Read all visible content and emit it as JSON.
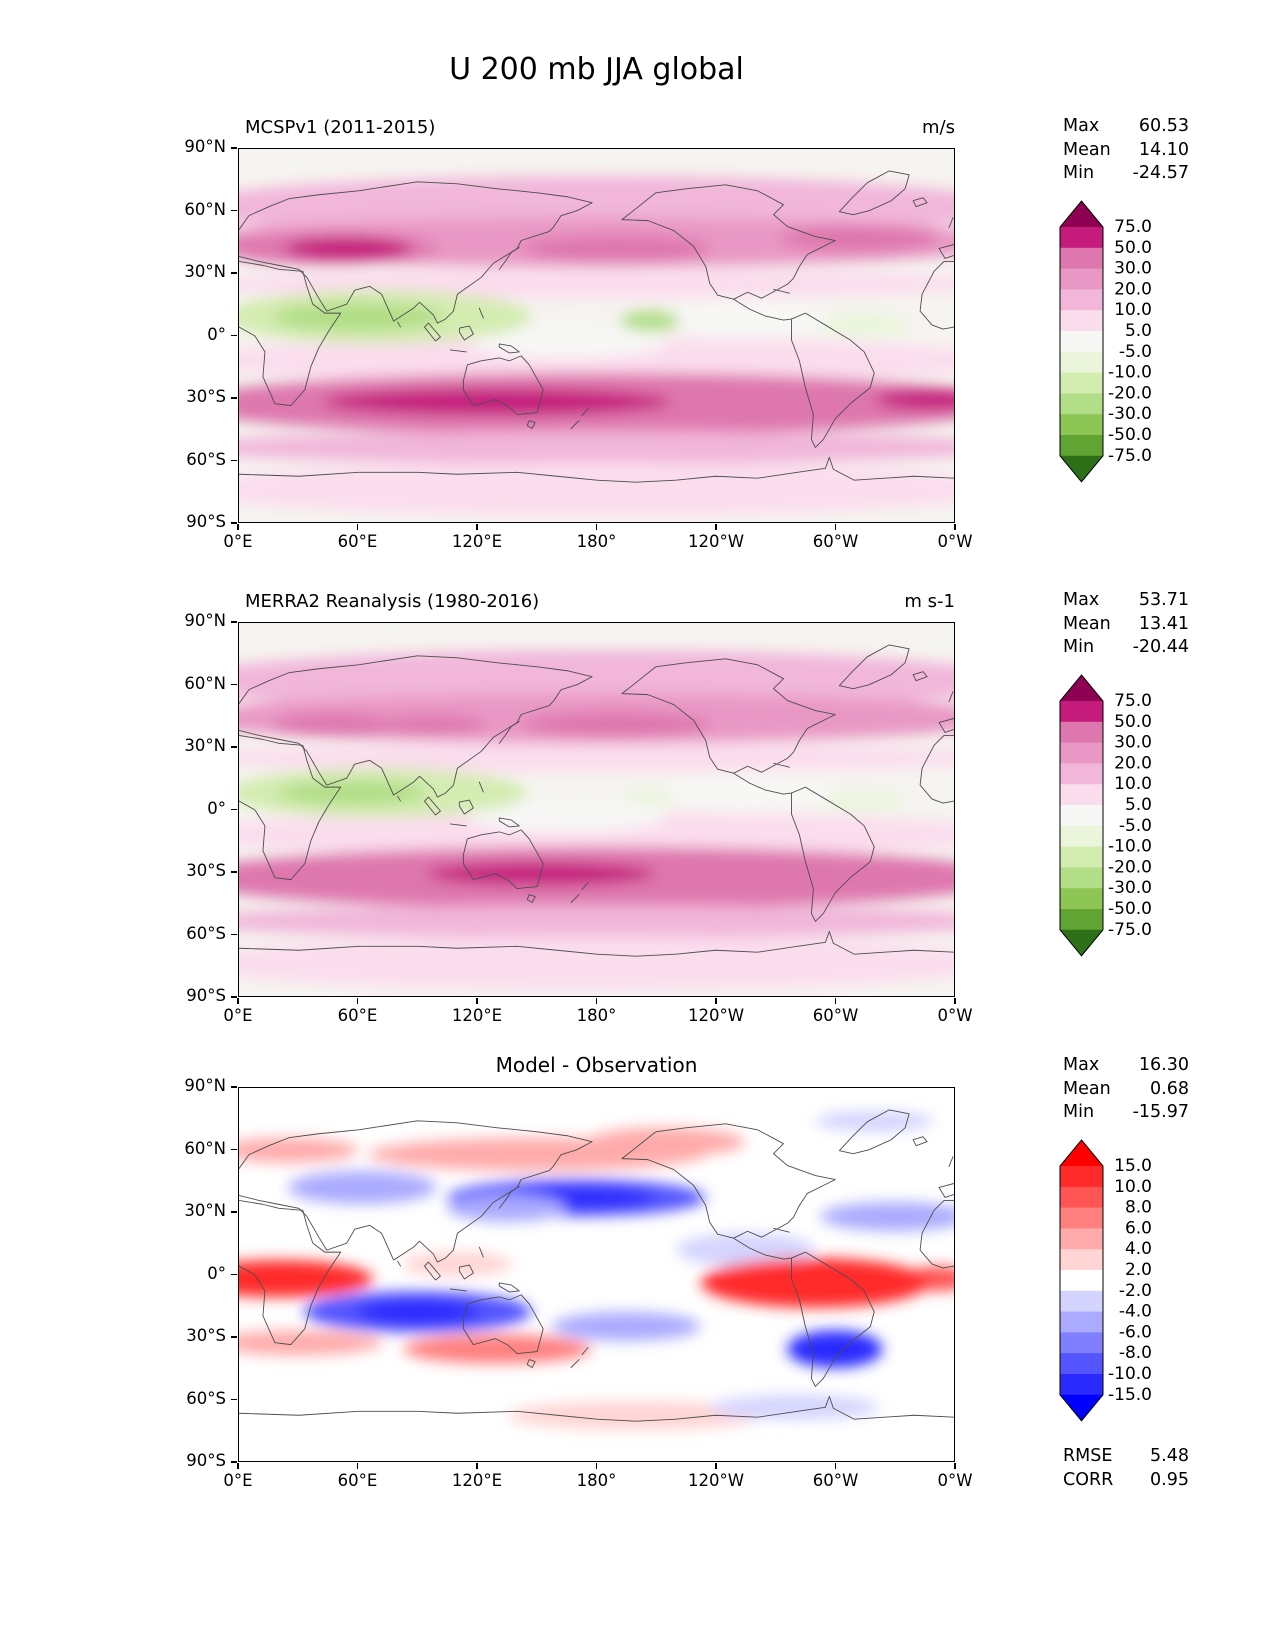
{
  "figure": {
    "title": "U 200 mb JJA global"
  },
  "axes": {
    "x_tick_labels": [
      "0°E",
      "60°E",
      "120°E",
      "180°",
      "120°W",
      "60°W",
      "0°W"
    ],
    "x_tick_lons": [
      0,
      60,
      120,
      180,
      240,
      300,
      360
    ],
    "y_tick_labels": [
      "90°N",
      "60°N",
      "30°N",
      "0°",
      "30°S",
      "60°S",
      "90°S"
    ],
    "y_tick_lats": [
      90,
      60,
      30,
      0,
      -30,
      -60,
      -90
    ],
    "lon_range": [
      0,
      360
    ],
    "lat_range": [
      -90,
      90
    ]
  },
  "chart_data": [
    {
      "type": "filled_contour_map",
      "variable": "U 200 mb",
      "season": "JJA",
      "region": "global",
      "title": "MCSPv1 (2011-2015)",
      "units": "m/s",
      "stats": [
        {
          "label": "Max",
          "value": "60.53"
        },
        {
          "label": "Mean",
          "value": "14.10"
        },
        {
          "label": "Min",
          "value": "-24.57"
        }
      ],
      "contour_levels": [
        -75,
        -50,
        -30,
        -20,
        -10,
        -5,
        5,
        10,
        20,
        30,
        50,
        75
      ],
      "colorbar_tick_labels_top_to_bottom": [
        "75.0",
        "50.0",
        "30.0",
        "20.0",
        "10.0",
        "5.0",
        "-5.0",
        "-10.0",
        "-20.0",
        "-30.0",
        "-50.0",
        "-75.0"
      ],
      "colormap": "PiYG_r",
      "colors_low_to_high": [
        "#2d7018",
        "#61a434",
        "#8ec656",
        "#b2de87",
        "#d3ecb0",
        "#eaf5dc",
        "#f7f7f5",
        "#fbddee",
        "#f1b6da",
        "#e998c5",
        "#de77ae",
        "#c51b7d",
        "#8e0152"
      ],
      "background_color": "#f6f4f0",
      "features": [
        {
          "lon": 180,
          "lat": 62,
          "lon_span": 420,
          "lat_span": 30,
          "value": 15
        },
        {
          "lon": 180,
          "lat": 45,
          "lon_span": 420,
          "lat_span": 24,
          "value": 25
        },
        {
          "lon": 45,
          "lat": 42,
          "lon_span": 110,
          "lat_span": 16,
          "value": 40
        },
        {
          "lon": 55,
          "lat": 42,
          "lon_span": 64,
          "lat_span": 11,
          "value": 60
        },
        {
          "lon": 190,
          "lat": 42,
          "lon_span": 95,
          "lat_span": 13,
          "value": 40
        },
        {
          "lon": 312,
          "lat": 47,
          "lon_span": 80,
          "lat_span": 13,
          "value": 40
        },
        {
          "lon": 180,
          "lat": 25,
          "lon_span": 420,
          "lat_span": 14,
          "value": 7
        },
        {
          "lon": 180,
          "lat": -12,
          "lon_span": 420,
          "lat_span": 22,
          "value": 7
        },
        {
          "lon": 165,
          "lat": -3,
          "lon_span": 100,
          "lat_span": 16,
          "value": 0
        },
        {
          "lon": 255,
          "lat": 8,
          "lon_span": 90,
          "lat_span": 18,
          "value": 0
        },
        {
          "lon": 180,
          "lat": -33,
          "lon_span": 420,
          "lat_span": 30,
          "value": 40
        },
        {
          "lon": 130,
          "lat": -32,
          "lon_span": 175,
          "lat_span": 13,
          "value": 60
        },
        {
          "lon": 350,
          "lat": -31,
          "lon_span": 60,
          "lat_span": 10,
          "value": 60
        },
        {
          "lon": 180,
          "lat": -54,
          "lon_span": 420,
          "lat_span": 16,
          "value": 15
        },
        {
          "lon": 180,
          "lat": -74,
          "lon_span": 420,
          "lat_span": 26,
          "value": 7
        },
        {
          "lon": 70,
          "lat": 9,
          "lon_span": 155,
          "lat_span": 26,
          "value": -15
        },
        {
          "lon": 60,
          "lat": 9,
          "lon_span": 85,
          "lat_span": 14,
          "value": -25
        },
        {
          "lon": 207,
          "lat": 7,
          "lon_span": 30,
          "lat_span": 10,
          "value": -25
        },
        {
          "lon": 315,
          "lat": 5,
          "lon_span": 45,
          "lat_span": 12,
          "value": -7
        }
      ]
    },
    {
      "type": "filled_contour_map",
      "variable": "U 200 mb",
      "season": "JJA",
      "region": "global",
      "title": "MERRA2 Reanalysis (1980-2016)",
      "units": "m s-1",
      "stats": [
        {
          "label": "Max",
          "value": "53.71"
        },
        {
          "label": "Mean",
          "value": "13.41"
        },
        {
          "label": "Min",
          "value": "-20.44"
        }
      ],
      "contour_levels": [
        -75,
        -50,
        -30,
        -20,
        -10,
        -5,
        5,
        10,
        20,
        30,
        50,
        75
      ],
      "colorbar_tick_labels_top_to_bottom": [
        "75.0",
        "50.0",
        "30.0",
        "20.0",
        "10.0",
        "5.0",
        "-5.0",
        "-10.0",
        "-20.0",
        "-30.0",
        "-50.0",
        "-75.0"
      ],
      "colormap": "PiYG_r",
      "colors_low_to_high": [
        "#2d7018",
        "#61a434",
        "#8ec656",
        "#b2de87",
        "#d3ecb0",
        "#eaf5dc",
        "#f7f7f5",
        "#fbddee",
        "#f1b6da",
        "#e998c5",
        "#de77ae",
        "#c51b7d",
        "#8e0152"
      ],
      "background_color": "#f6f4f0",
      "features": [
        {
          "lon": 180,
          "lat": 62,
          "lon_span": 420,
          "lat_span": 30,
          "value": 15
        },
        {
          "lon": 180,
          "lat": 44,
          "lon_span": 420,
          "lat_span": 24,
          "value": 25
        },
        {
          "lon": 48,
          "lat": 41,
          "lon_span": 62,
          "lat_span": 11,
          "value": 40
        },
        {
          "lon": 97,
          "lat": 41,
          "lon_span": 55,
          "lat_span": 9,
          "value": 40
        },
        {
          "lon": 190,
          "lat": 41,
          "lon_span": 95,
          "lat_span": 12,
          "value": 40
        },
        {
          "lon": 312,
          "lat": 46,
          "lon_span": 80,
          "lat_span": 13,
          "value": 25
        },
        {
          "lon": 180,
          "lat": 25,
          "lon_span": 420,
          "lat_span": 14,
          "value": 7
        },
        {
          "lon": 180,
          "lat": -12,
          "lon_span": 420,
          "lat_span": 22,
          "value": 7
        },
        {
          "lon": 165,
          "lat": -3,
          "lon_span": 100,
          "lat_span": 16,
          "value": 0
        },
        {
          "lon": 255,
          "lat": 8,
          "lon_span": 90,
          "lat_span": 18,
          "value": 0
        },
        {
          "lon": 180,
          "lat": -33,
          "lon_span": 420,
          "lat_span": 30,
          "value": 40
        },
        {
          "lon": 152,
          "lat": -31,
          "lon_span": 115,
          "lat_span": 11,
          "value": 60
        },
        {
          "lon": 355,
          "lat": -31,
          "lon_span": 55,
          "lat_span": 10,
          "value": 40
        },
        {
          "lon": 180,
          "lat": -54,
          "lon_span": 420,
          "lat_span": 16,
          "value": 15
        },
        {
          "lon": 180,
          "lat": -74,
          "lon_span": 420,
          "lat_span": 26,
          "value": 7
        },
        {
          "lon": 70,
          "lat": 8,
          "lon_span": 150,
          "lat_span": 24,
          "value": -15
        },
        {
          "lon": 57,
          "lat": 8,
          "lon_span": 75,
          "lat_span": 12,
          "value": -25
        },
        {
          "lon": 207,
          "lat": 6,
          "lon_span": 26,
          "lat_span": 8,
          "value": -7
        },
        {
          "lon": 315,
          "lat": 4,
          "lon_span": 40,
          "lat_span": 10,
          "value": -7
        }
      ]
    },
    {
      "type": "filled_contour_map",
      "variable": "U 200 mb",
      "season": "JJA",
      "region": "global",
      "title": "Model - Observation",
      "units": "",
      "stats": [
        {
          "label": "Max",
          "value": "16.30"
        },
        {
          "label": "Mean",
          "value": "0.68"
        },
        {
          "label": "Min",
          "value": "-15.97"
        }
      ],
      "extra_stats": [
        {
          "label": "RMSE",
          "value": "5.48"
        },
        {
          "label": "CORR",
          "value": "0.95"
        }
      ],
      "contour_levels": [
        -15,
        -10,
        -8,
        -6,
        -4,
        -2,
        2,
        4,
        6,
        8,
        10,
        15
      ],
      "colorbar_tick_labels_top_to_bottom": [
        "15.0",
        "10.0",
        "8.0",
        "6.0",
        "4.0",
        "2.0",
        "-2.0",
        "-4.0",
        "-6.0",
        "-8.0",
        "-10.0",
        "-15.0"
      ],
      "colormap": "bwr",
      "colors_low_to_high": [
        "#0000ff",
        "#2a2aff",
        "#5555ff",
        "#7f7fff",
        "#aaaaff",
        "#d4d4ff",
        "#ffffff",
        "#ffd4d4",
        "#ffaaaa",
        "#ff7f7f",
        "#ff5555",
        "#ff2a2a",
        "#ff0000"
      ],
      "background_color": "#ffffff",
      "features": [
        {
          "lon": 150,
          "lat": 58,
          "lon_span": 170,
          "lat_span": 16,
          "value": 6
        },
        {
          "lon": 215,
          "lat": 64,
          "lon_span": 80,
          "lat_span": 14,
          "value": 5
        },
        {
          "lon": 25,
          "lat": 60,
          "lon_span": 70,
          "lat_span": 12,
          "value": 5
        },
        {
          "lon": 170,
          "lat": 37,
          "lon_span": 130,
          "lat_span": 18,
          "value": -9
        },
        {
          "lon": 172,
          "lat": 37,
          "lon_span": 75,
          "lat_span": 10,
          "value": -12
        },
        {
          "lon": 62,
          "lat": 42,
          "lon_span": 75,
          "lat_span": 16,
          "value": -5
        },
        {
          "lon": 135,
          "lat": 32,
          "lon_span": 60,
          "lat_span": 13,
          "value": -5
        },
        {
          "lon": 330,
          "lat": 28,
          "lon_span": 75,
          "lat_span": 14,
          "value": -5
        },
        {
          "lon": 255,
          "lat": 12,
          "lon_span": 70,
          "lat_span": 16,
          "value": -3
        },
        {
          "lon": 20,
          "lat": -2,
          "lon_span": 95,
          "lat_span": 18,
          "value": 12
        },
        {
          "lon": 352,
          "lat": -2,
          "lon_span": 34,
          "lat_span": 12,
          "value": 9
        },
        {
          "lon": 290,
          "lat": -4,
          "lon_span": 115,
          "lat_span": 24,
          "value": 12
        },
        {
          "lon": 110,
          "lat": 5,
          "lon_span": 55,
          "lat_span": 12,
          "value": 3
        },
        {
          "lon": 90,
          "lat": -18,
          "lon_span": 115,
          "lat_span": 20,
          "value": -9
        },
        {
          "lon": 90,
          "lat": -18,
          "lon_span": 62,
          "lat_span": 12,
          "value": -12
        },
        {
          "lon": 195,
          "lat": -25,
          "lon_span": 75,
          "lat_span": 14,
          "value": -5
        },
        {
          "lon": 30,
          "lat": -33,
          "lon_span": 85,
          "lat_span": 12,
          "value": 5
        },
        {
          "lon": 130,
          "lat": -36,
          "lon_span": 95,
          "lat_span": 14,
          "value": 7
        },
        {
          "lon": 300,
          "lat": -36,
          "lon_span": 48,
          "lat_span": 18,
          "value": -12
        },
        {
          "lon": 200,
          "lat": -68,
          "lon_span": 130,
          "lat_span": 14,
          "value": 3
        },
        {
          "lon": 280,
          "lat": -64,
          "lon_span": 85,
          "lat_span": 12,
          "value": -3
        },
        {
          "lon": 320,
          "lat": 74,
          "lon_span": 60,
          "lat_span": 10,
          "value": -3
        }
      ]
    }
  ]
}
